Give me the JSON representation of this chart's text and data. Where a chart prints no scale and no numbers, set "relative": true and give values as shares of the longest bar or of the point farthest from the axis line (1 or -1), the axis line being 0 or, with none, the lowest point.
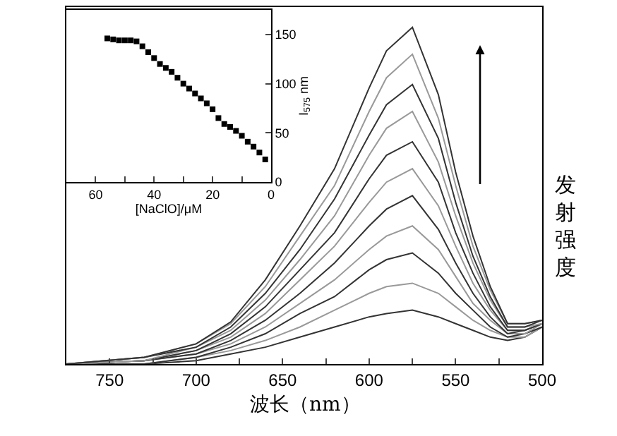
{
  "chart_data": [
    {
      "type": "line",
      "relative": true,
      "xlabel": "波长（nm）",
      "ylabel": "发射强度",
      "xlim": [
        775,
        500
      ],
      "xticks": [
        750,
        {
          "value": 725,
          "label": null
        },
        700,
        {
          "value": 675,
          "label": null
        },
        650,
        {
          "value": 625,
          "label": null
        },
        600,
        {
          "value": 575,
          "label": null
        },
        550,
        {
          "value": 525,
          "label": null
        },
        500
      ],
      "x": [
        500,
        510,
        520,
        530,
        540,
        550,
        560,
        575,
        590,
        600,
        620,
        640,
        660,
        680,
        700,
        730,
        775
      ],
      "series": [
        {
          "color": "#333333",
          "values": [
            0.11,
            0.08,
            0.07,
            0.08,
            0.1,
            0.12,
            0.14,
            0.16,
            0.15,
            0.14,
            0.11,
            0.08,
            0.05,
            0.03,
            0.01,
            0.0,
            0.0
          ]
        },
        {
          "color": "#999999",
          "values": [
            0.11,
            0.08,
            0.08,
            0.1,
            0.13,
            0.17,
            0.21,
            0.24,
            0.23,
            0.21,
            0.16,
            0.11,
            0.07,
            0.04,
            0.02,
            0.0,
            0.0
          ]
        },
        {
          "color": "#333333",
          "values": [
            0.11,
            0.09,
            0.08,
            0.11,
            0.16,
            0.21,
            0.27,
            0.33,
            0.31,
            0.28,
            0.2,
            0.15,
            0.09,
            0.05,
            0.02,
            0.0,
            0.0
          ]
        },
        {
          "color": "#999999",
          "values": [
            0.12,
            0.09,
            0.09,
            0.13,
            0.18,
            0.26,
            0.34,
            0.41,
            0.38,
            0.34,
            0.25,
            0.18,
            0.11,
            0.06,
            0.03,
            0.01,
            0.0
          ]
        },
        {
          "color": "#333333",
          "values": [
            0.12,
            0.1,
            0.09,
            0.14,
            0.21,
            0.3,
            0.4,
            0.5,
            0.46,
            0.41,
            0.3,
            0.21,
            0.13,
            0.07,
            0.03,
            0.01,
            0.0
          ]
        },
        {
          "color": "#999999",
          "values": [
            0.12,
            0.1,
            0.1,
            0.16,
            0.24,
            0.35,
            0.47,
            0.58,
            0.54,
            0.48,
            0.35,
            0.25,
            0.15,
            0.08,
            0.04,
            0.01,
            0.0
          ]
        },
        {
          "color": "#333333",
          "values": [
            0.12,
            0.1,
            0.1,
            0.17,
            0.27,
            0.39,
            0.54,
            0.66,
            0.62,
            0.55,
            0.39,
            0.28,
            0.17,
            0.09,
            0.04,
            0.01,
            0.0
          ]
        },
        {
          "color": "#999999",
          "values": [
            0.12,
            0.11,
            0.11,
            0.19,
            0.3,
            0.44,
            0.6,
            0.75,
            0.7,
            0.62,
            0.44,
            0.31,
            0.19,
            0.1,
            0.05,
            0.01,
            0.0
          ]
        },
        {
          "color": "#333333",
          "values": [
            0.13,
            0.11,
            0.11,
            0.2,
            0.32,
            0.48,
            0.67,
            0.83,
            0.77,
            0.68,
            0.49,
            0.34,
            0.21,
            0.11,
            0.05,
            0.02,
            0.0
          ]
        },
        {
          "color": "#999999",
          "values": [
            0.13,
            0.12,
            0.12,
            0.22,
            0.35,
            0.53,
            0.73,
            0.92,
            0.85,
            0.75,
            0.53,
            0.38,
            0.23,
            0.12,
            0.06,
            0.02,
            0.0
          ]
        },
        {
          "color": "#333333",
          "values": [
            0.13,
            0.12,
            0.12,
            0.23,
            0.38,
            0.57,
            0.8,
            1.0,
            0.93,
            0.82,
            0.58,
            0.41,
            0.25,
            0.125,
            0.06,
            0.02,
            0.0
          ]
        }
      ]
    },
    {
      "type": "scatter",
      "marker": "square",
      "xlabel": "[NaClO]/μM",
      "ylabel": "I$_{575}$ nm",
      "xlim": [
        70,
        0
      ],
      "ylim": [
        0,
        175
      ],
      "xticks": [
        60,
        {
          "value": 50,
          "label": null
        },
        40,
        {
          "value": 30,
          "label": null
        },
        20,
        {
          "value": 10,
          "label": null
        },
        0
      ],
      "yticks": [
        0,
        50,
        100,
        150
      ],
      "x": [
        56,
        54,
        52,
        50,
        48,
        46,
        44,
        42,
        40,
        38,
        36,
        34,
        32,
        30,
        28,
        26,
        24,
        22,
        20,
        18,
        16,
        14,
        12,
        10,
        8,
        6,
        4,
        2
      ],
      "series": [
        {
          "color": "#000000",
          "values": [
            146,
            145,
            144,
            144,
            144,
            143,
            138,
            132,
            126,
            120,
            116,
            112,
            106,
            100,
            95,
            90,
            85,
            80,
            74,
            65,
            59,
            56,
            52,
            47,
            41,
            36,
            30,
            23
          ]
        }
      ]
    }
  ]
}
